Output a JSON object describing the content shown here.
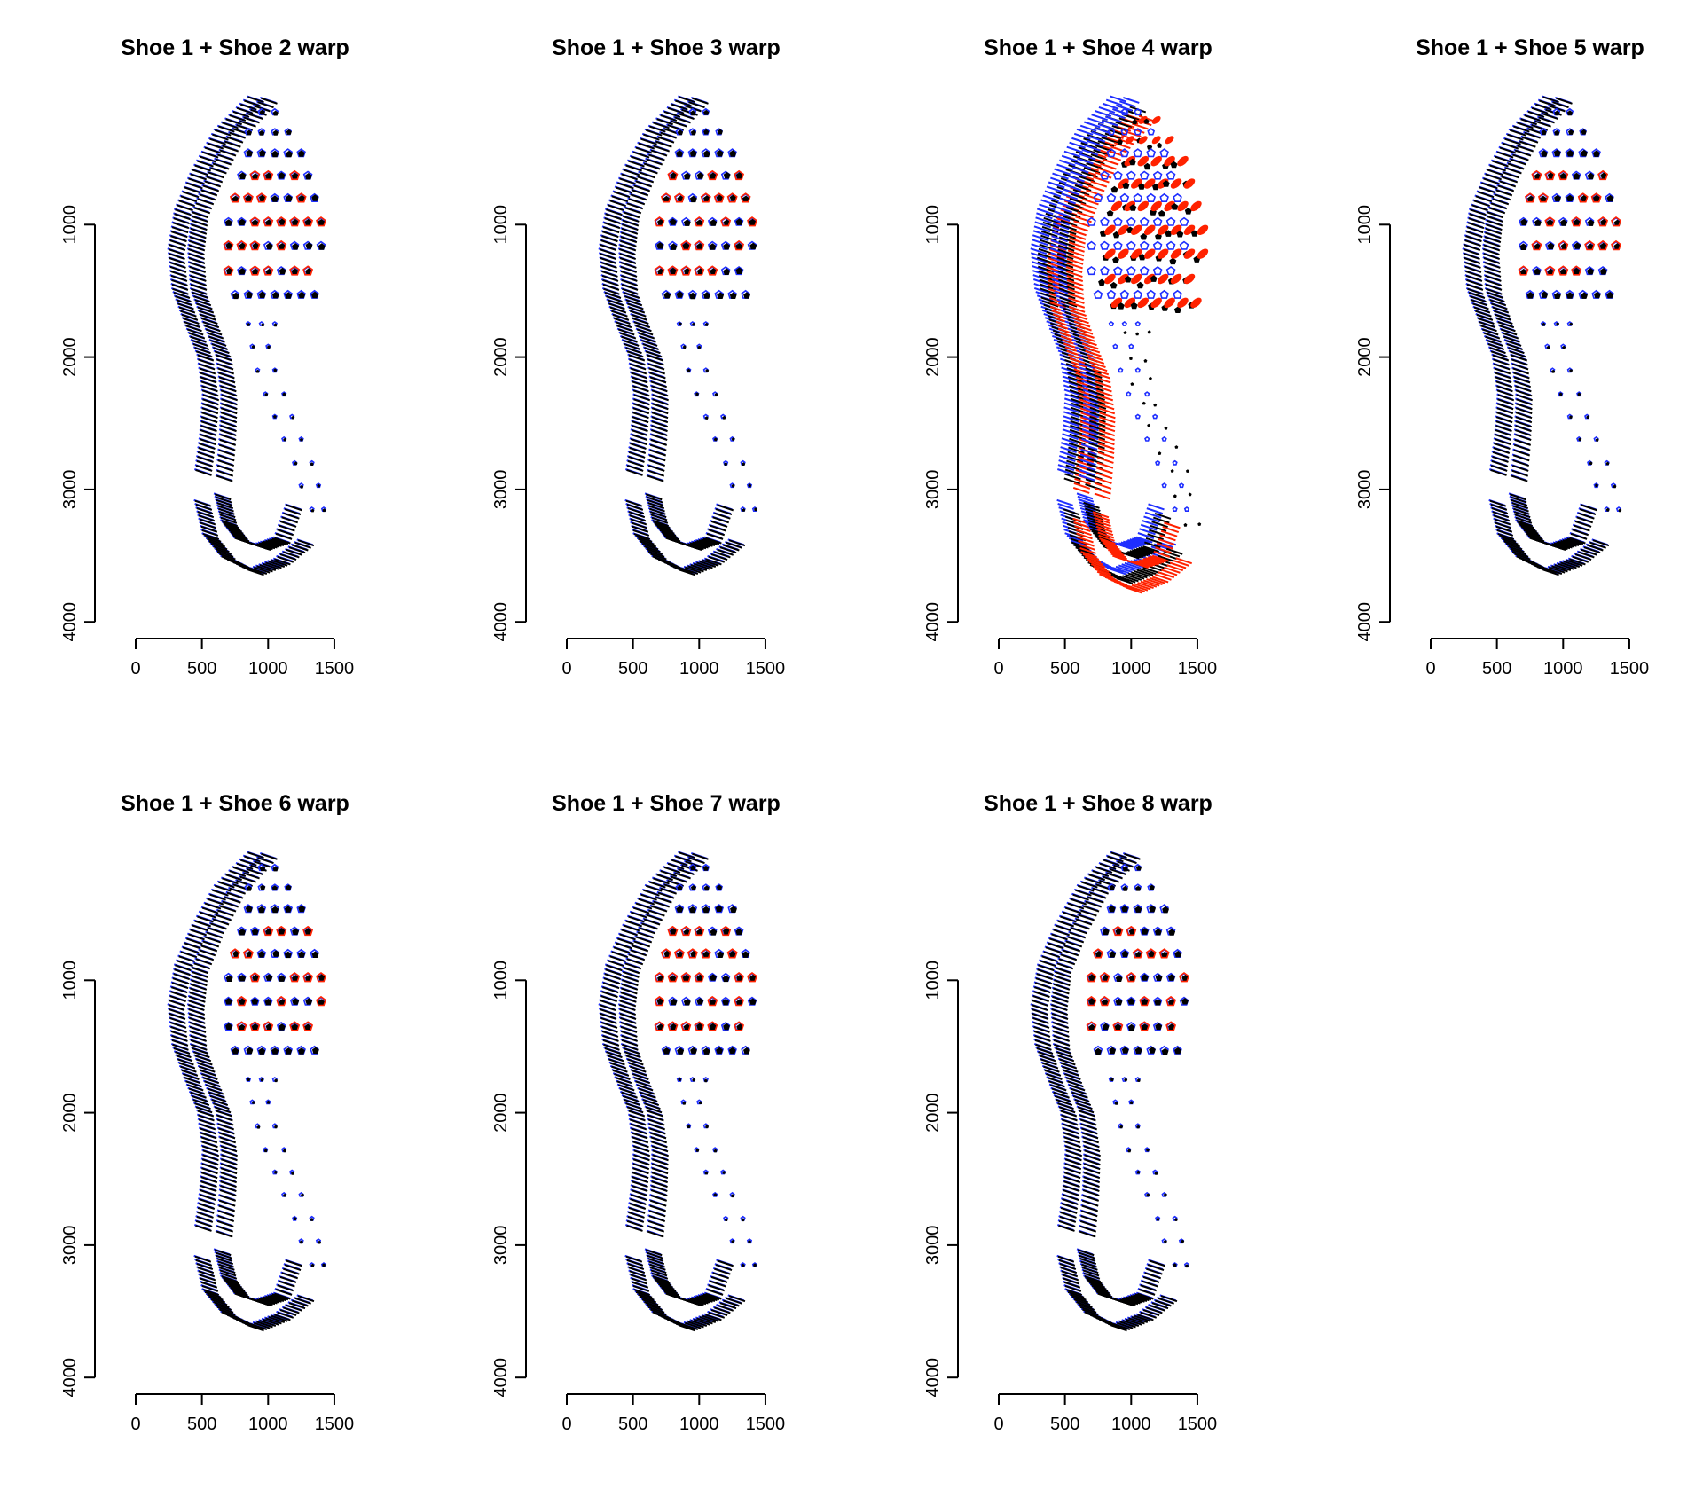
{
  "figure": {
    "layout": "2 rows x 4 columns, 7 panels",
    "colors": {
      "shoe1": "#000000",
      "warped_shoe": "#1f2fff",
      "mismatch": "#ff2200",
      "background": "#ffffff"
    }
  },
  "chart_data": [
    {
      "type": "scatter",
      "title": "Shoe 1 + Shoe 2 warp",
      "xlabel": "",
      "ylabel": "",
      "xlim": [
        0,
        1500
      ],
      "ylim": [
        4000,
        0
      ],
      "x_ticks": [
        0,
        500,
        1000,
        1500
      ],
      "y_ticks": [
        1000,
        2000,
        3000,
        4000
      ],
      "overlay": "aligned",
      "series": [
        {
          "color": "#000000"
        },
        {
          "color": "#1f2fff"
        }
      ]
    },
    {
      "type": "scatter",
      "title": "Shoe 1 + Shoe 3 warp",
      "xlabel": "",
      "ylabel": "",
      "xlim": [
        0,
        1500
      ],
      "ylim": [
        4000,
        0
      ],
      "x_ticks": [
        0,
        500,
        1000,
        1500
      ],
      "y_ticks": [
        1000,
        2000,
        3000,
        4000
      ],
      "overlay": "aligned",
      "series": [
        {
          "color": "#000000"
        },
        {
          "color": "#1f2fff"
        }
      ]
    },
    {
      "type": "scatter",
      "title": "Shoe 1 + Shoe 4 warp",
      "xlabel": "",
      "ylabel": "",
      "xlim": [
        0,
        1500
      ],
      "ylim": [
        4000,
        0
      ],
      "x_ticks": [
        0,
        500,
        1000,
        1500
      ],
      "y_ticks": [
        1000,
        2000,
        3000,
        4000
      ],
      "overlay": "misaligned",
      "series": [
        {
          "color": "#000000"
        },
        {
          "color": "#1f2fff"
        }
      ]
    },
    {
      "type": "scatter",
      "title": "Shoe 1 + Shoe 5 warp",
      "xlabel": "",
      "ylabel": "",
      "xlim": [
        0,
        1500
      ],
      "ylim": [
        4000,
        0
      ],
      "x_ticks": [
        0,
        500,
        1000,
        1500
      ],
      "y_ticks": [
        1000,
        2000,
        3000,
        4000
      ],
      "overlay": "aligned",
      "series": [
        {
          "color": "#000000"
        },
        {
          "color": "#1f2fff"
        }
      ]
    },
    {
      "type": "scatter",
      "title": "Shoe 1 + Shoe 6 warp",
      "xlabel": "",
      "ylabel": "",
      "xlim": [
        0,
        1500
      ],
      "ylim": [
        4000,
        0
      ],
      "x_ticks": [
        0,
        500,
        1000,
        1500
      ],
      "y_ticks": [
        1000,
        2000,
        3000,
        4000
      ],
      "overlay": "aligned",
      "series": [
        {
          "color": "#000000"
        },
        {
          "color": "#1f2fff"
        }
      ]
    },
    {
      "type": "scatter",
      "title": "Shoe 1 + Shoe 7 warp",
      "xlabel": "",
      "ylabel": "",
      "xlim": [
        0,
        1500
      ],
      "ylim": [
        4000,
        0
      ],
      "x_ticks": [
        0,
        500,
        1000,
        1500
      ],
      "y_ticks": [
        1000,
        2000,
        3000,
        4000
      ],
      "overlay": "aligned",
      "series": [
        {
          "color": "#000000"
        },
        {
          "color": "#1f2fff"
        }
      ]
    },
    {
      "type": "scatter",
      "title": "Shoe 1 + Shoe 8 warp",
      "xlabel": "",
      "ylabel": "",
      "xlim": [
        0,
        1500
      ],
      "ylim": [
        4000,
        0
      ],
      "x_ticks": [
        0,
        500,
        1000,
        1500
      ],
      "y_ticks": [
        1000,
        2000,
        3000,
        4000
      ],
      "overlay": "aligned",
      "series": [
        {
          "color": "#000000"
        },
        {
          "color": "#1f2fff"
        }
      ]
    }
  ]
}
